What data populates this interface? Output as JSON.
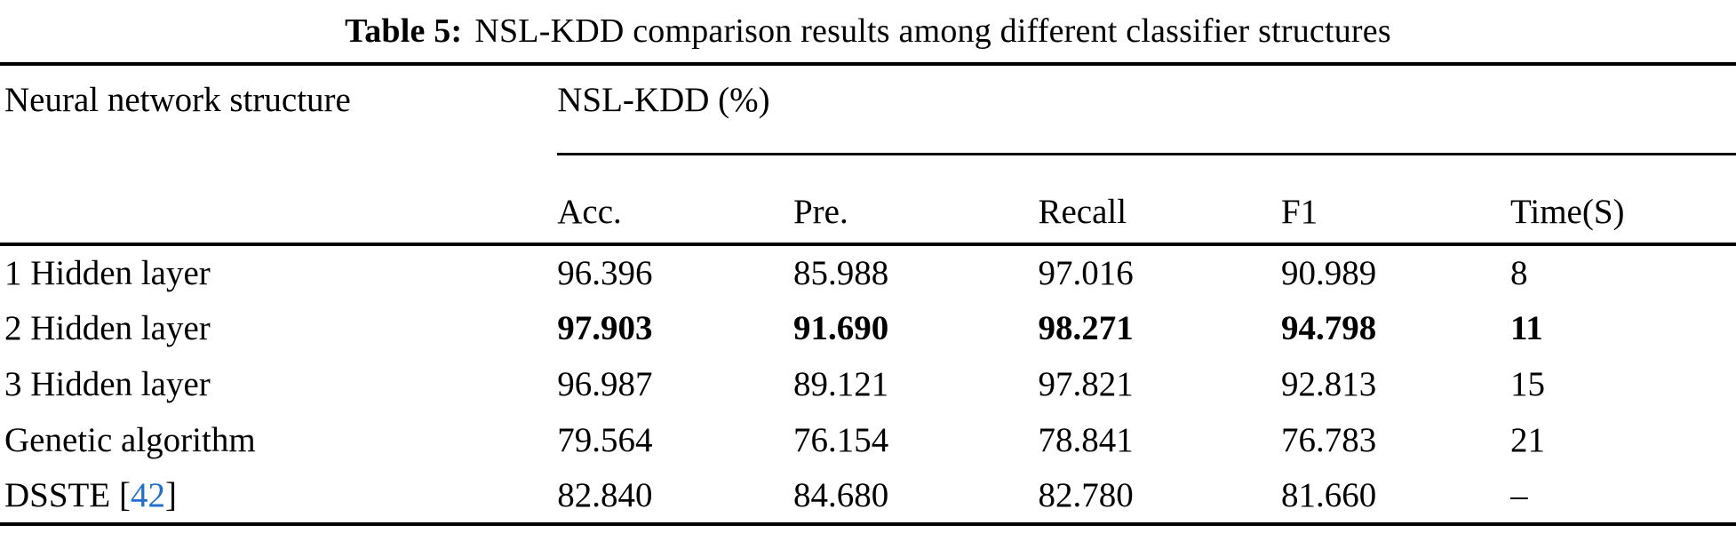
{
  "caption": {
    "label": "Table 5:",
    "text": "NSL-KDD comparison results among different classifier structures"
  },
  "table": {
    "stub_header": "Neural network structure",
    "group_header": "NSL-KDD (%)",
    "sub_headers": [
      "Acc.",
      "Pre.",
      "Recall",
      "F1",
      "Time(S)"
    ],
    "rows": [
      {
        "label": "1 Hidden layer",
        "values": [
          "96.396",
          "85.988",
          "97.016",
          "90.989",
          "8"
        ],
        "bold_values": false
      },
      {
        "label": "2 Hidden layer",
        "values": [
          "97.903",
          "91.690",
          "98.271",
          "94.798",
          "11"
        ],
        "bold_values": true
      },
      {
        "label": "3 Hidden layer",
        "values": [
          "96.987",
          "89.121",
          "97.821",
          "92.813",
          "15"
        ],
        "bold_values": false
      },
      {
        "label": "Genetic algorithm",
        "values": [
          "79.564",
          "76.154",
          "78.841",
          "76.783",
          "21"
        ],
        "bold_values": false
      },
      {
        "label": "DSSTE",
        "citation": {
          "prefix": " [",
          "number": "42",
          "suffix": "]"
        },
        "values": [
          "82.840",
          "84.680",
          "82.780",
          "81.660",
          "–"
        ],
        "bold_values": false
      }
    ]
  },
  "colors": {
    "text": "#000000",
    "rule": "#000000",
    "citation_link": "#1e6fd0",
    "background": "#ffffff"
  }
}
